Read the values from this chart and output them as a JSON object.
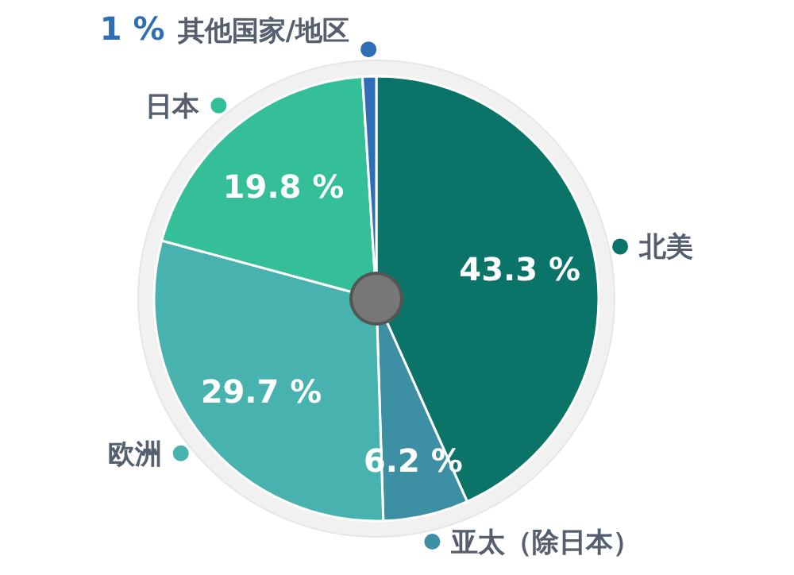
{
  "chart_data": {
    "type": "pie",
    "categories": [
      "北美",
      "亚太（除日本）",
      "欧洲",
      "日本",
      "其他国家/地区"
    ],
    "values": [
      43.3,
      6.2,
      29.7,
      19.8,
      1
    ],
    "colors": [
      "#0b7468",
      "#3d8fa3",
      "#48b2ae",
      "#35bf98",
      "#2f6eb5"
    ],
    "value_labels": [
      "43.3 %",
      "6.2 %",
      "29.7 %",
      "19.8 %",
      "1 %"
    ],
    "legend": "left"
  }
}
